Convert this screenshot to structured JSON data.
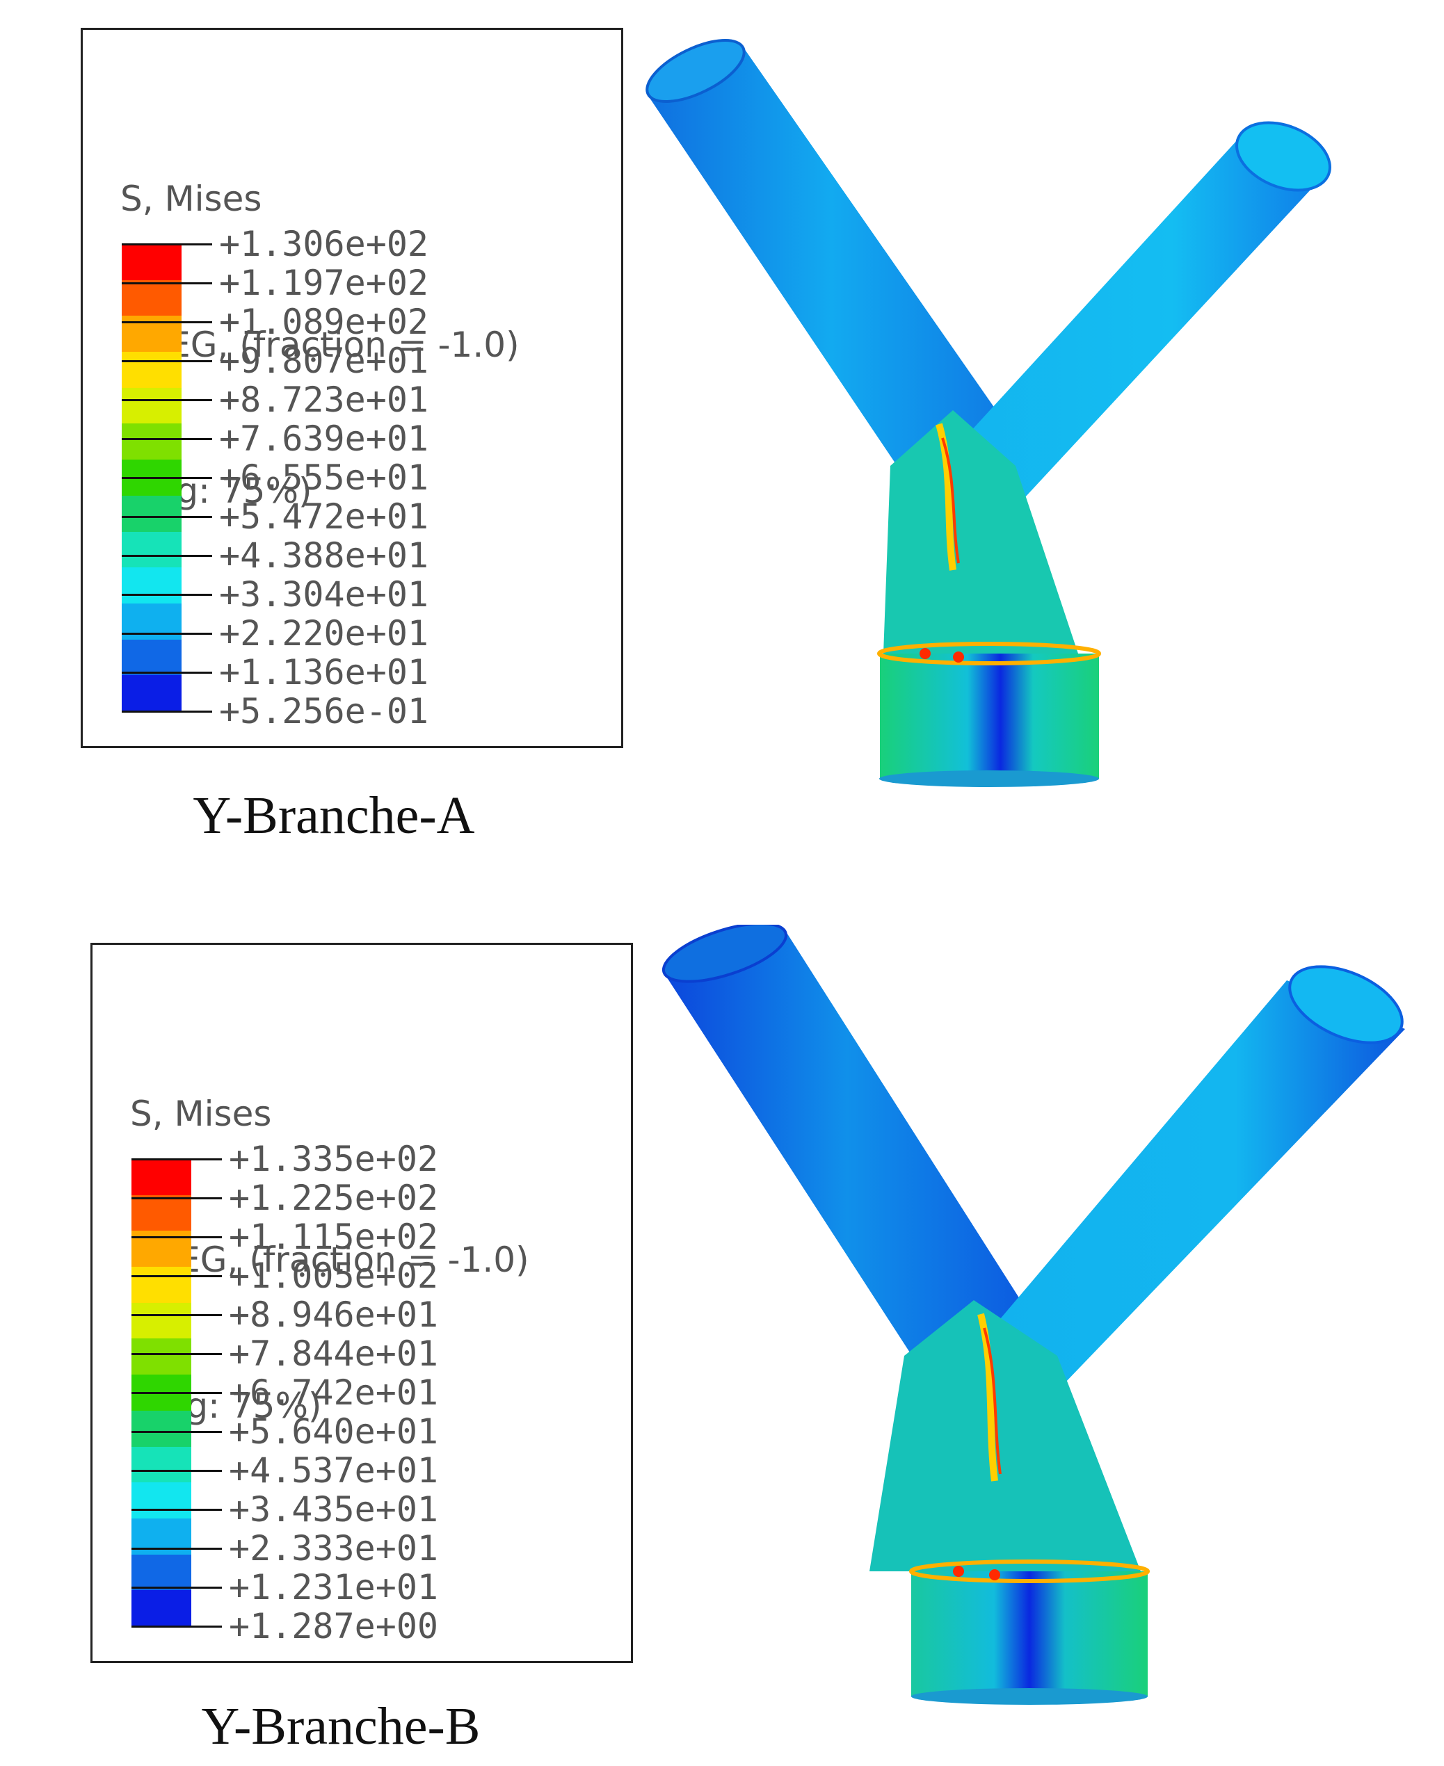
{
  "panels": [
    {
      "legend": {
        "title": "S, Mises",
        "line2": "SNEG, (fraction = -1.0)",
        "line3": "(Avg: 75%)",
        "ticks": [
          "+1.306e+02",
          "+1.197e+02",
          "+1.089e+02",
          "+9.807e+01",
          "+8.723e+01",
          "+7.639e+01",
          "+6.555e+01",
          "+5.472e+01",
          "+4.388e+01",
          "+3.304e+01",
          "+2.220e+01",
          "+1.136e+01",
          "+5.256e-01"
        ]
      },
      "caption": "Y-Branche-A"
    },
    {
      "legend": {
        "title": "S, Mises",
        "line2": "SNEG, (fraction = -1.0)",
        "line3": "(Avg: 75%)",
        "ticks": [
          "+1.335e+02",
          "+1.225e+02",
          "+1.115e+02",
          "+1.005e+02",
          "+8.946e+01",
          "+7.844e+01",
          "+6.742e+01",
          "+5.640e+01",
          "+4.537e+01",
          "+3.435e+01",
          "+2.333e+01",
          "+1.231e+01",
          "+1.287e+00"
        ]
      },
      "caption": "Y-Branche-B"
    }
  ],
  "colors": {
    "scale": [
      "#ff0000",
      "#ff5a00",
      "#ffa800",
      "#ffdf00",
      "#d7ef00",
      "#7fe000",
      "#2fd600",
      "#18d26a",
      "#16e3b8",
      "#12e6ef",
      "#0fb0ef",
      "#1068e6",
      "#0a1ee6"
    ]
  }
}
